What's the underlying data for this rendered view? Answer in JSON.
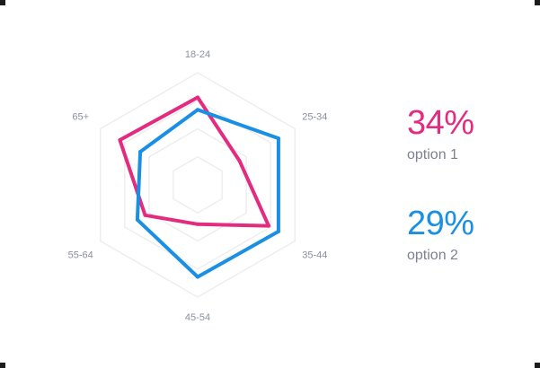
{
  "chart_data": {
    "type": "radar",
    "axes": [
      "18-24",
      "25-34",
      "35-44",
      "45-54",
      "55-64",
      "65+"
    ],
    "scale_max": 100,
    "grid_levels": [
      25,
      50,
      75,
      100
    ],
    "series": [
      {
        "name": "option 1",
        "summary": "34%",
        "color": "#e32b7f",
        "values": [
          78,
          43,
          73,
          35,
          54,
          80
        ]
      },
      {
        "name": "option 2",
        "summary": "29%",
        "color": "#1a8fe3",
        "values": [
          67,
          83,
          83,
          82,
          62,
          59
        ]
      }
    ]
  },
  "colors": {
    "grid": "#eeeeee",
    "axis_label": "#8b8fa3",
    "corner_marks": "#1c1c1c"
  }
}
